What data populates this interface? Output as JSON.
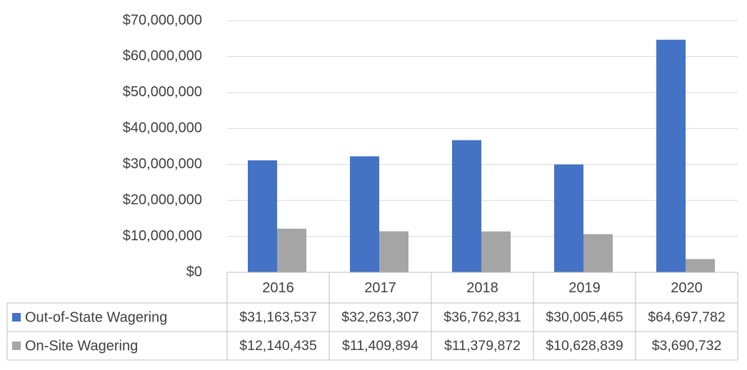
{
  "chart_data": {
    "type": "bar",
    "categories": [
      "2016",
      "2017",
      "2018",
      "2019",
      "2020"
    ],
    "series": [
      {
        "name": "Out-of-State Wagering",
        "color": "#4472c4",
        "values": [
          31163537,
          32263307,
          36762831,
          30005465,
          64697782
        ],
        "value_labels": [
          "$31,163,537",
          "$32,263,307",
          "$36,762,831",
          "$30,005,465",
          "$64,697,782"
        ]
      },
      {
        "name": "On-Site Wagering",
        "color": "#a5a5a5",
        "values": [
          12140435,
          11409894,
          11379872,
          10628839,
          3690732
        ],
        "value_labels": [
          "$12,140,435",
          "$11,409,894",
          "$11,379,872",
          "$10,628,839",
          "$3,690,732"
        ]
      }
    ],
    "ylim": [
      0,
      70000000
    ],
    "yticks": [
      {
        "value": 0,
        "label": "$0"
      },
      {
        "value": 10000000,
        "label": "$10,000,000"
      },
      {
        "value": 20000000,
        "label": "$20,000,000"
      },
      {
        "value": 30000000,
        "label": "$30,000,000"
      },
      {
        "value": 40000000,
        "label": "$40,000,000"
      },
      {
        "value": 50000000,
        "label": "$50,000,000"
      },
      {
        "value": 60000000,
        "label": "$60,000,000"
      },
      {
        "value": 70000000,
        "label": "$70,000,000"
      }
    ],
    "grid": true,
    "data_table": true
  }
}
